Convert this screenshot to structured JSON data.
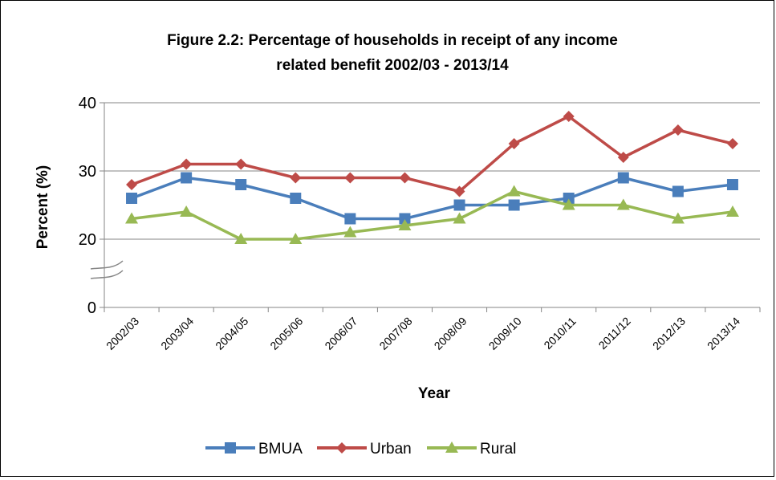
{
  "chart_data": {
    "type": "line",
    "title_line1": "Figure 2.2: Percentage of households in receipt of any income",
    "title_line2": "related benefit 2002/03 - 2013/14",
    "xlabel": "Year",
    "ylabel": "Percent (%)",
    "ylim": [
      0,
      40
    ],
    "y_axis_break": true,
    "y_ticks": [
      "0",
      "20",
      "30",
      "40"
    ],
    "grid": "horizontal",
    "legend_position": "bottom",
    "categories": [
      "2002/03",
      "2003/04",
      "2004/05",
      "2005/06",
      "2006/07",
      "2007/08",
      "2008/09",
      "2009/10",
      "2010/11",
      "2011/12",
      "2012/13",
      "2013/14"
    ],
    "series": [
      {
        "name": "BMUA",
        "color": "#4A7EBB",
        "marker": "square",
        "values": [
          26,
          29,
          28,
          26,
          23,
          23,
          25,
          25,
          26,
          29,
          27,
          28
        ]
      },
      {
        "name": "Urban",
        "color": "#BE4B48",
        "marker": "diamond",
        "values": [
          28,
          31,
          31,
          29,
          29,
          29,
          27,
          34,
          38,
          32,
          36,
          34
        ]
      },
      {
        "name": "Rural",
        "color": "#98B954",
        "marker": "triangle",
        "values": [
          23,
          24,
          20,
          20,
          21,
          22,
          23,
          27,
          25,
          25,
          23,
          24
        ]
      }
    ]
  }
}
